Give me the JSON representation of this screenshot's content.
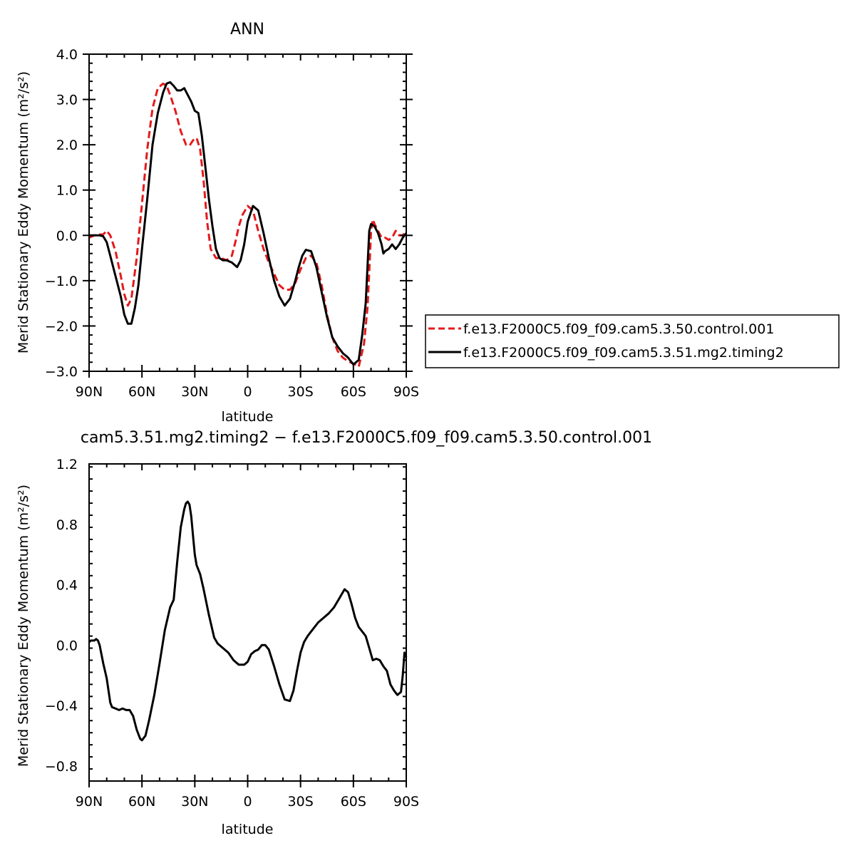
{
  "chart_data": [
    {
      "type": "line",
      "title": "ANN",
      "xlabel": "latitude",
      "ylabel": "Merid Stationary Eddy Momentum (m²/s²)",
      "ylabel_main": "Merid Stationary Eddy Momentum",
      "ylabel_units": "(m²/s²)",
      "xlim": [
        90,
        -90
      ],
      "ylim": [
        -3.0,
        4.0
      ],
      "x_ticks": [
        {
          "value": 90,
          "label": "90N"
        },
        {
          "value": 60,
          "label": "60N"
        },
        {
          "value": 30,
          "label": "30N"
        },
        {
          "value": 0,
          "label": "0"
        },
        {
          "value": -30,
          "label": "30S"
        },
        {
          "value": -60,
          "label": "60S"
        },
        {
          "value": -90,
          "label": "90S"
        }
      ],
      "y_ticks": [
        {
          "value": 4.0,
          "label": "4.0"
        },
        {
          "value": 3.0,
          "label": "3.0"
        },
        {
          "value": 2.0,
          "label": "2.0"
        },
        {
          "value": 1.0,
          "label": "1.0"
        },
        {
          "value": 0.0,
          "label": "0.0"
        },
        {
          "value": -1.0,
          "label": "−1.0"
        },
        {
          "value": -2.0,
          "label": "−2.0"
        },
        {
          "value": -3.0,
          "label": "−3.0"
        }
      ],
      "legend_position": "right",
      "series": [
        {
          "name": "f.e13.F2000C5.f09_f09.cam5.3.50.control.001",
          "color": "#e41a1c",
          "dash": "dashed",
          "x": [
            90,
            87,
            85,
            82,
            80,
            78,
            75,
            72,
            70,
            68,
            66,
            63,
            60,
            57,
            54,
            51,
            48,
            46,
            44,
            41,
            38,
            35,
            33,
            31,
            29,
            27,
            25,
            23,
            21,
            18,
            15,
            12,
            9,
            7,
            5,
            3,
            0,
            -3,
            -6,
            -9,
            -12,
            -15,
            -18,
            -21,
            -24,
            -27,
            -30,
            -33,
            -36,
            -39,
            -42,
            -45,
            -48,
            -51,
            -54,
            -57,
            -60,
            -63,
            -66,
            -68,
            -69,
            -70,
            -71,
            -72,
            -74,
            -76,
            -78,
            -80,
            -82,
            -84,
            -86,
            -88,
            -90
          ],
          "y": [
            -0.05,
            0.0,
            0.02,
            0.02,
            0.1,
            0.0,
            -0.35,
            -0.9,
            -1.3,
            -1.55,
            -1.4,
            -0.5,
            0.7,
            1.9,
            2.8,
            3.25,
            3.35,
            3.3,
            3.1,
            2.75,
            2.3,
            2.0,
            1.98,
            2.1,
            2.15,
            1.9,
            1.2,
            0.3,
            -0.3,
            -0.5,
            -0.5,
            -0.55,
            -0.45,
            -0.15,
            0.2,
            0.45,
            0.65,
            0.55,
            0.1,
            -0.3,
            -0.6,
            -0.85,
            -1.1,
            -1.2,
            -1.2,
            -1.05,
            -0.75,
            -0.5,
            -0.45,
            -0.6,
            -1.1,
            -1.75,
            -2.25,
            -2.55,
            -2.7,
            -2.78,
            -2.83,
            -2.9,
            -2.4,
            -1.6,
            -0.8,
            0.1,
            0.35,
            0.25,
            0.1,
            -0.05,
            -0.05,
            -0.1,
            -0.05,
            0.1,
            0.0,
            0.0,
            0.1
          ]
        },
        {
          "name": "f.e13.F2000C5.f09_f09.cam5.3.51.mg2.timing2",
          "color": "#000000",
          "dash": "solid",
          "x": [
            90,
            88,
            86,
            84,
            82,
            80,
            78,
            75,
            72,
            70,
            68,
            66,
            64,
            62,
            60,
            57,
            54,
            51,
            48,
            46,
            44,
            42,
            40,
            38,
            36,
            34,
            32,
            30,
            28,
            26,
            24,
            22,
            20,
            18,
            16,
            14,
            12,
            9,
            6,
            4,
            2,
            0,
            -3,
            -6,
            -9,
            -12,
            -15,
            -18,
            -21,
            -24,
            -27,
            -29,
            -31,
            -33,
            -36,
            -39,
            -42,
            -45,
            -48,
            -51,
            -54,
            -57,
            -60,
            -63,
            -65,
            -67,
            -68,
            -69,
            -70,
            -72,
            -74,
            -76,
            -77,
            -78,
            -80,
            -82,
            -84,
            -86,
            -88,
            -90
          ],
          "y": [
            0.0,
            0.0,
            0.0,
            0.0,
            -0.02,
            -0.15,
            -0.45,
            -0.9,
            -1.35,
            -1.75,
            -1.95,
            -1.95,
            -1.6,
            -1.1,
            -0.3,
            0.8,
            2.0,
            2.7,
            3.15,
            3.35,
            3.38,
            3.3,
            3.2,
            3.2,
            3.25,
            3.1,
            2.95,
            2.75,
            2.7,
            2.2,
            1.5,
            0.8,
            0.2,
            -0.3,
            -0.5,
            -0.55,
            -0.55,
            -0.6,
            -0.7,
            -0.55,
            -0.2,
            0.3,
            0.65,
            0.55,
            0.05,
            -0.5,
            -1.0,
            -1.35,
            -1.55,
            -1.4,
            -1.0,
            -0.7,
            -0.45,
            -0.32,
            -0.35,
            -0.7,
            -1.25,
            -1.8,
            -2.25,
            -2.45,
            -2.6,
            -2.7,
            -2.85,
            -2.75,
            -2.2,
            -1.5,
            -0.7,
            0.1,
            0.25,
            0.2,
            0.05,
            -0.2,
            -0.4,
            -0.35,
            -0.3,
            -0.2,
            -0.3,
            -0.2,
            -0.05,
            0.05
          ]
        }
      ]
    },
    {
      "type": "line",
      "title": "cam5.3.51.mg2.timing2 − f.e13.F2000C5.f09_f09.cam5.3.50.control.001",
      "xlabel": "latitude",
      "ylabel": "Merid Stationary Eddy Momentum (m²/s²)",
      "ylabel_main": "Merid Stationary Eddy Momentum",
      "ylabel_units": "(m²/s²)",
      "xlim": [
        90,
        -90
      ],
      "ylim": [
        -0.9,
        1.2
      ],
      "x_ticks": [
        {
          "value": 90,
          "label": "90N"
        },
        {
          "value": 60,
          "label": "60N"
        },
        {
          "value": 30,
          "label": "30N"
        },
        {
          "value": 0,
          "label": "0"
        },
        {
          "value": -30,
          "label": "30S"
        },
        {
          "value": -60,
          "label": "60S"
        },
        {
          "value": -90,
          "label": "90S"
        }
      ],
      "y_ticks": [
        {
          "value": 1.2,
          "label": "1.2"
        },
        {
          "value": 0.8,
          "label": "0.8"
        },
        {
          "value": 0.4,
          "label": "0.4"
        },
        {
          "value": 0.0,
          "label": "0.0"
        },
        {
          "value": -0.4,
          "label": "−0.4"
        },
        {
          "value": -0.8,
          "label": "−0.8"
        }
      ],
      "series": [
        {
          "color": "#000000",
          "dash": "solid",
          "x": [
            90,
            89,
            88,
            87,
            86,
            85,
            84,
            82,
            80,
            78,
            77,
            75,
            73,
            71,
            69,
            67,
            65,
            63,
            61,
            60,
            58,
            56,
            53,
            50,
            47,
            44,
            42,
            40,
            38,
            36,
            35,
            34,
            33,
            32,
            31,
            30,
            29,
            28,
            27,
            25,
            22,
            19,
            17,
            14,
            11,
            8,
            5,
            2,
            0,
            -2,
            -4,
            -6,
            -8,
            -10,
            -12,
            -15,
            -18,
            -21,
            -24,
            -26,
            -28,
            -30,
            -32,
            -34,
            -36,
            -38,
            -40,
            -43,
            -46,
            -49,
            -52,
            -55,
            -57,
            -59,
            -61,
            -63,
            -65,
            -67,
            -69,
            -71,
            -73,
            -75,
            -77,
            -79,
            -81,
            -83,
            -85,
            -87,
            -88,
            -89,
            -90
          ],
          "y": [
            0.02,
            0.03,
            0.03,
            0.03,
            0.04,
            0.03,
            0.0,
            -0.12,
            -0.22,
            -0.38,
            -0.41,
            -0.42,
            -0.43,
            -0.42,
            -0.43,
            -0.43,
            -0.47,
            -0.56,
            -0.62,
            -0.63,
            -0.6,
            -0.5,
            -0.33,
            -0.12,
            0.1,
            0.25,
            0.3,
            0.55,
            0.78,
            0.9,
            0.94,
            0.95,
            0.93,
            0.85,
            0.72,
            0.6,
            0.53,
            0.5,
            0.47,
            0.37,
            0.2,
            0.05,
            0.01,
            -0.02,
            -0.05,
            -0.1,
            -0.13,
            -0.13,
            -0.11,
            -0.06,
            -0.04,
            -0.03,
            0.0,
            0.0,
            -0.03,
            -0.14,
            -0.26,
            -0.36,
            -0.37,
            -0.3,
            -0.17,
            -0.05,
            0.02,
            0.06,
            0.09,
            0.12,
            0.15,
            0.18,
            0.21,
            0.25,
            0.31,
            0.37,
            0.35,
            0.27,
            0.18,
            0.12,
            0.09,
            0.06,
            -0.02,
            -0.1,
            -0.09,
            -0.1,
            -0.14,
            -0.17,
            -0.26,
            -0.3,
            -0.33,
            -0.31,
            -0.2,
            -0.05,
            -0.08
          ]
        }
      ]
    }
  ]
}
